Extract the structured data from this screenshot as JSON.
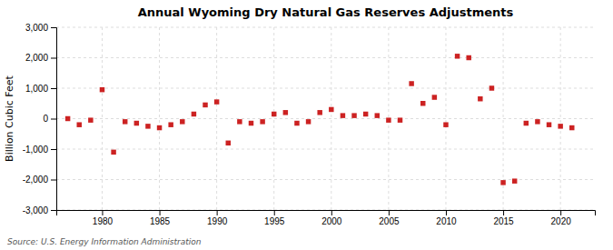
{
  "chart_data": {
    "type": "scatter",
    "title": "Annual Wyoming Dry Natural Gas Reserves Adjustments",
    "ylabel": "Billion Cubic Feet",
    "annotations": [
      "Source: U.S. Energy Information Administration"
    ],
    "color": "#cc2222",
    "marker": "square",
    "grid": true,
    "xlim": [
      1976,
      2023
    ],
    "xticks": [
      1980,
      1985,
      1990,
      1995,
      2000,
      2005,
      2010,
      2015,
      2020
    ],
    "ylim": [
      -3000,
      3000
    ],
    "yticks": [
      {
        "value": -3000,
        "label": "-3,000"
      },
      {
        "value": -2000,
        "label": "-2,000"
      },
      {
        "value": -1000,
        "label": "-1,000"
      },
      0,
      {
        "value": 1000,
        "label": "1,000"
      },
      {
        "value": 2000,
        "label": "2,000"
      },
      {
        "value": 3000,
        "label": "3,000"
      }
    ],
    "x": [
      1977,
      1978,
      1979,
      1980,
      1981,
      1982,
      1983,
      1984,
      1985,
      1986,
      1987,
      1988,
      1989,
      1990,
      1991,
      1992,
      1993,
      1994,
      1995,
      1996,
      1997,
      1998,
      1999,
      2000,
      2001,
      2002,
      2003,
      2004,
      2005,
      2006,
      2007,
      2008,
      2009,
      2010,
      2011,
      2012,
      2013,
      2014,
      2015,
      2016,
      2017,
      2018,
      2019,
      2020,
      2021
    ],
    "values": [
      0,
      -200,
      -50,
      950,
      -1100,
      -100,
      -150,
      -250,
      -300,
      -200,
      -100,
      150,
      450,
      550,
      -800,
      -100,
      -150,
      -100,
      150,
      200,
      -150,
      -100,
      200,
      300,
      100,
      100,
      150,
      100,
      -50,
      -50,
      1150,
      500,
      700,
      -200,
      2050,
      2000,
      650,
      1000,
      -2100,
      -2050,
      -150,
      -100,
      -200,
      -250,
      -300
    ]
  }
}
